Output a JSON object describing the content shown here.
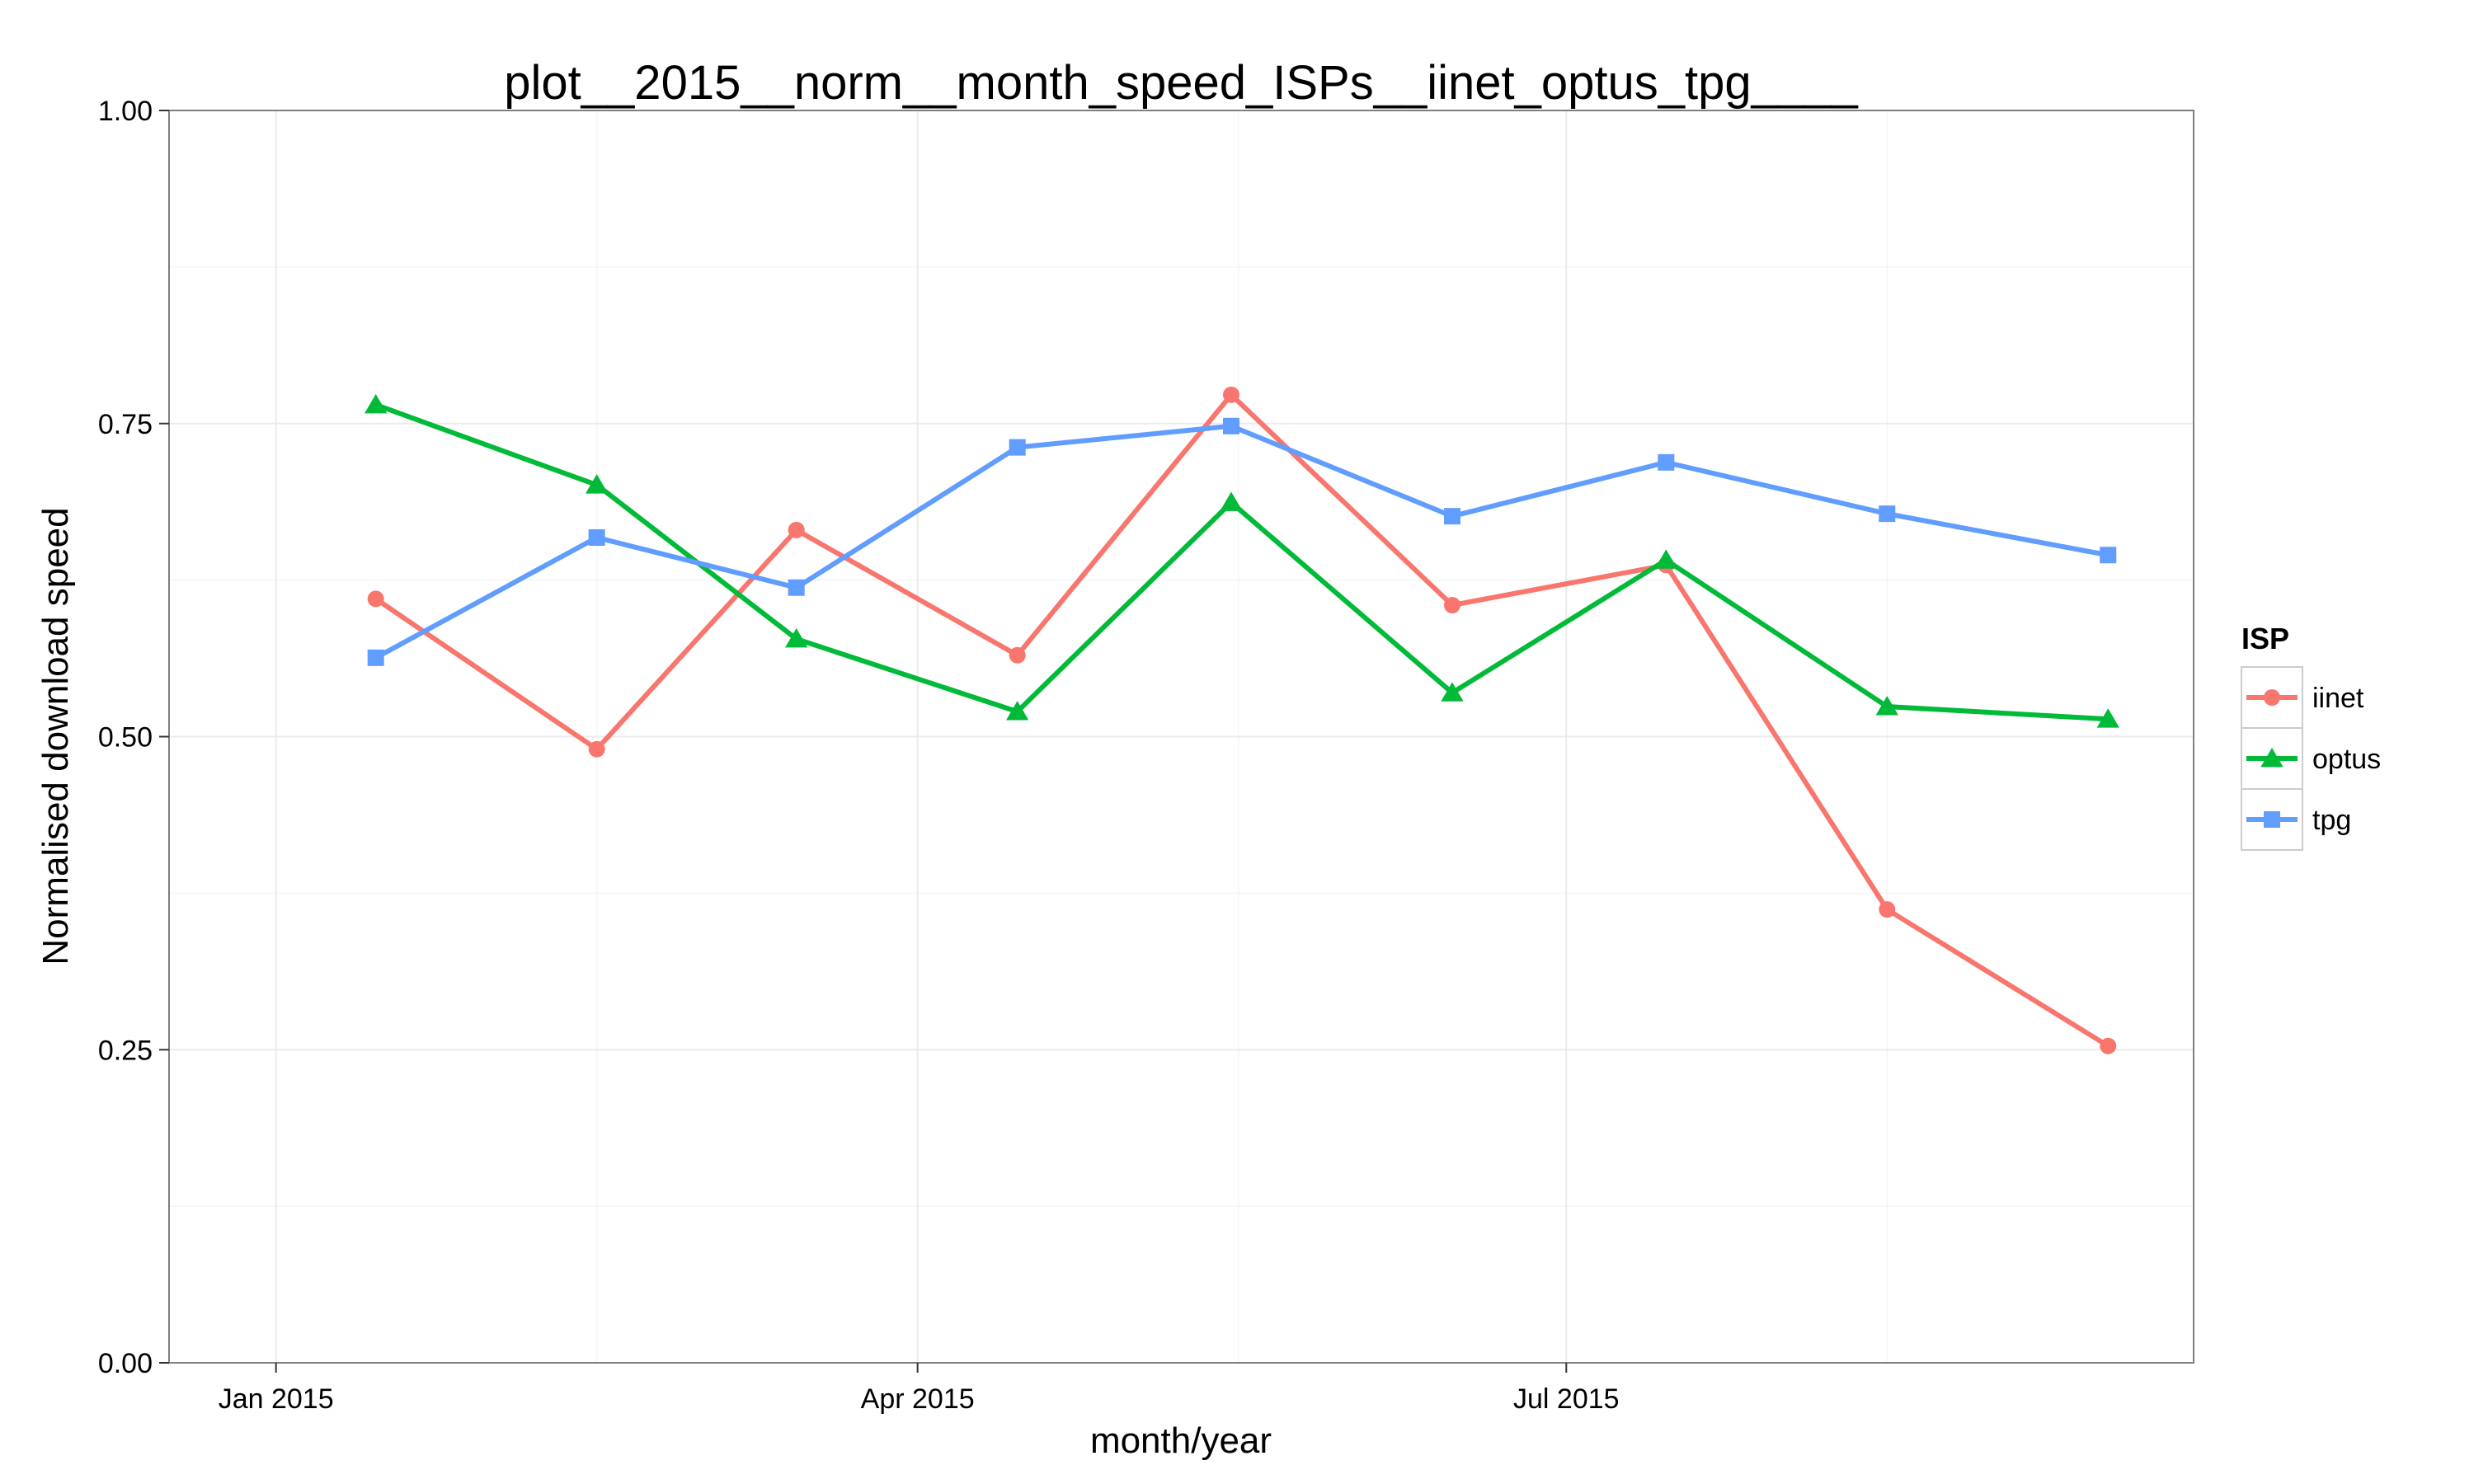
{
  "chart_data": {
    "type": "line",
    "title": "plot__2015__norm__month_speed_ISPs__iinet_optus_tpg____",
    "xlabel": "month/year",
    "ylabel": "Normalised download speed",
    "x": [
      "2015-01-15",
      "2015-02-15",
      "2015-03-15",
      "2015-04-15",
      "2015-05-15",
      "2015-06-15",
      "2015-07-15",
      "2015-08-15",
      "2015-09-15"
    ],
    "x_ticks": [
      {
        "date": "2015-01-01",
        "label": "Jan 2015"
      },
      {
        "date": "2015-04-01",
        "label": "Apr 2015"
      },
      {
        "date": "2015-07-01",
        "label": "Jul 2015"
      }
    ],
    "xlim": [
      "2014-12-17",
      "2015-09-27"
    ],
    "ylim": [
      0,
      1
    ],
    "y_ticks": [
      0.0,
      0.25,
      0.5,
      0.75,
      1.0
    ],
    "grid": true,
    "legend": {
      "title": "ISP",
      "position": "right"
    },
    "series": [
      {
        "name": "iinet",
        "color": "#F8766D",
        "marker": "circle",
        "values": [
          0.61,
          0.49,
          0.665,
          0.565,
          0.773,
          0.605,
          0.637,
          0.362,
          0.253
        ]
      },
      {
        "name": "optus",
        "color": "#00BA38",
        "marker": "triangle",
        "values": [
          0.765,
          0.701,
          0.578,
          0.52,
          0.687,
          0.535,
          0.641,
          0.524,
          0.514
        ]
      },
      {
        "name": "tpg",
        "color": "#619CFF",
        "marker": "square",
        "values": [
          0.563,
          0.659,
          0.619,
          0.731,
          0.748,
          0.676,
          0.719,
          0.678,
          0.645
        ]
      }
    ]
  }
}
